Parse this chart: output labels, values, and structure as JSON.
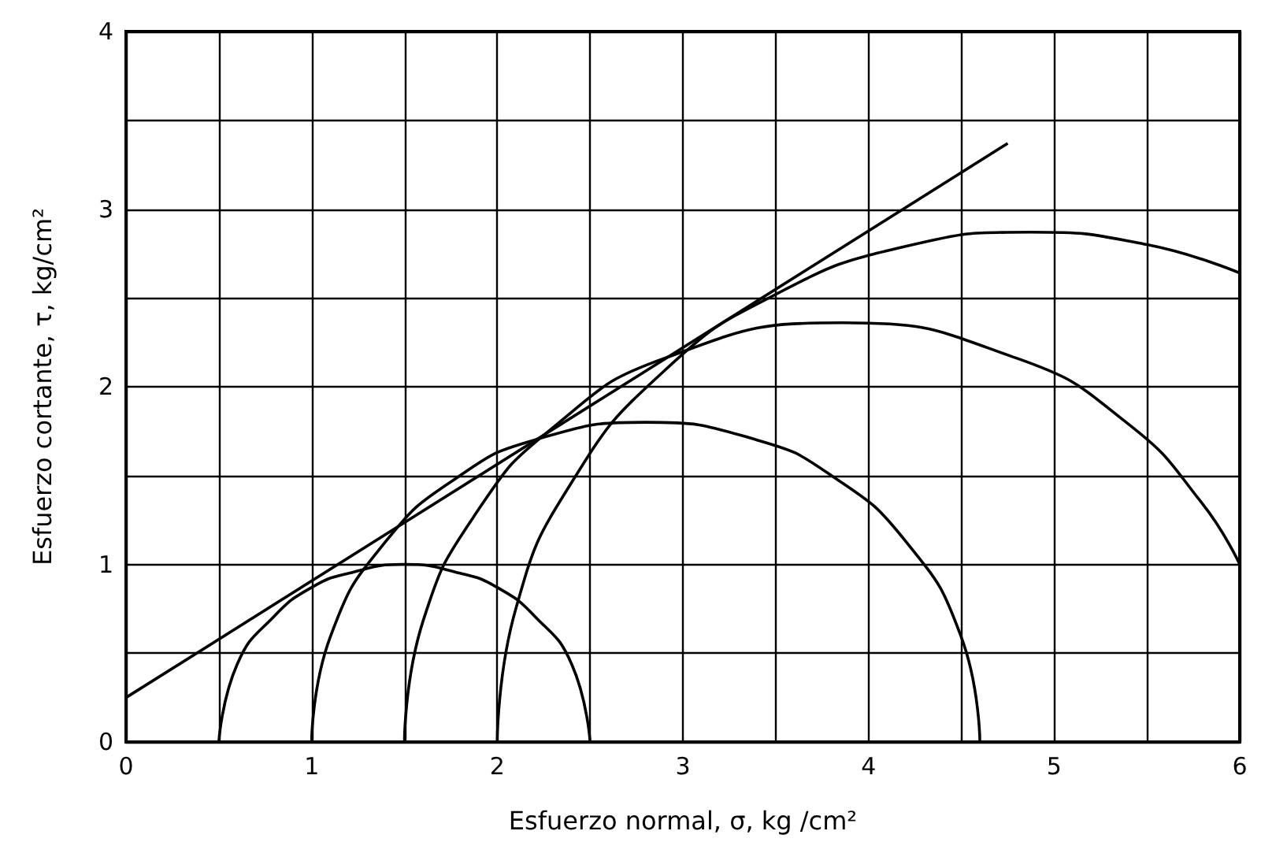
{
  "chart_data": {
    "type": "line",
    "xlabel": "Esfuerzo normal, σ, kg /cm²",
    "ylabel": "Esfuerzo cortante, τ, kg/cm²",
    "xlim": [
      0,
      6
    ],
    "ylim": [
      0,
      4
    ],
    "xticks": [
      0,
      {
        "value": 0.5,
        "label": null
      },
      1,
      {
        "value": 1.5,
        "label": null
      },
      2,
      {
        "value": 2.5,
        "label": null
      },
      3,
      {
        "value": 3.5,
        "label": null
      },
      4,
      {
        "value": 4.5,
        "label": null
      },
      5,
      {
        "value": 5.5,
        "label": null
      },
      6
    ],
    "yticks": [
      0,
      {
        "value": 0.5,
        "label": null
      },
      1,
      {
        "value": 1.5,
        "label": null
      },
      2,
      {
        "value": 2.5,
        "label": null
      },
      3,
      {
        "value": 3.5,
        "label": null
      },
      4
    ],
    "grid": true,
    "marker": "none",
    "line_style": "solid",
    "series": [
      {
        "color": "#000000",
        "x": [
          0.5,
          0.6,
          0.8,
          1.0,
          1.2,
          1.5,
          1.8,
          2.0,
          2.2,
          2.4,
          2.5
        ],
        "values": [
          0,
          0.44,
          0.71,
          0.87,
          0.95,
          1.0,
          0.95,
          0.87,
          0.71,
          0.44,
          0
        ]
      },
      {
        "color": "#000000",
        "x": [
          1.0,
          1.1,
          1.4,
          1.8,
          2.2,
          2.8,
          3.4,
          3.8,
          4.2,
          4.5,
          4.6
        ],
        "values": [
          0,
          0.59,
          1.13,
          1.5,
          1.7,
          1.8,
          1.7,
          1.5,
          1.13,
          0.59,
          0
        ]
      },
      {
        "color": "#000000",
        "x": [
          1.5,
          1.6,
          1.9,
          2.3,
          2.9,
          3.86,
          4.8,
          5.4,
          5.8,
          6.0
        ],
        "values": [
          0,
          0.68,
          1.31,
          1.77,
          2.16,
          2.36,
          2.16,
          1.79,
          1.34,
          1.0
        ]
      },
      {
        "color": "#000000",
        "x": [
          2.0,
          2.1,
          2.4,
          2.9,
          3.5,
          4.2,
          4.87,
          5.5,
          6.0
        ],
        "values": [
          0,
          0.75,
          1.46,
          2.09,
          2.52,
          2.79,
          2.87,
          2.8,
          2.64
        ]
      },
      {
        "color": "#000000",
        "x": [
          0,
          4.75
        ],
        "values": [
          0.25,
          3.37
        ]
      }
    ]
  }
}
